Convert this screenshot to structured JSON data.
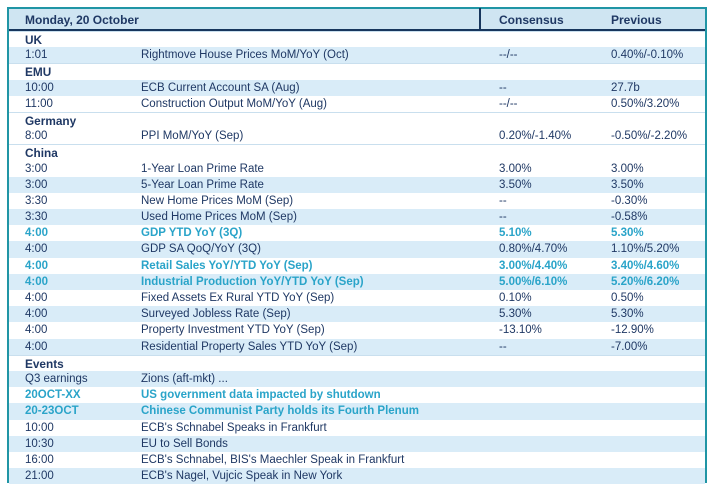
{
  "header": {
    "title": "Monday, 20 October",
    "consensus_label": "Consensus",
    "previous_label": "Previous"
  },
  "colors": {
    "accent_teal_text": "#2aa4c9",
    "navy_text": "#1f3864",
    "stripe_blue": "#d9ecf8",
    "header_blue": "#cfe5f2",
    "outer_border_teal": "#2095a5",
    "header_rule_navy": "#17365d"
  },
  "rows": [
    {
      "type": "section",
      "label": "UK"
    },
    {
      "type": "data",
      "time": "1:01",
      "event": "Rightmove House Prices MoM/YoY (Oct)",
      "consensus": "--/--",
      "previous": "0.40%/-0.10%",
      "highlight": false
    },
    {
      "type": "section",
      "label": "EMU"
    },
    {
      "type": "data",
      "time": "10:00",
      "event": "ECB Current Account SA (Aug)",
      "consensus": "--",
      "previous": "27.7b",
      "highlight": false
    },
    {
      "type": "data",
      "time": "11:00",
      "event": "Construction Output MoM/YoY (Aug)",
      "consensus": "--/--",
      "previous": "0.50%/3.20%",
      "highlight": false
    },
    {
      "type": "section",
      "label": "Germany"
    },
    {
      "type": "data",
      "time": "8:00",
      "event": "PPI MoM/YoY (Sep)",
      "consensus": "0.20%/-1.40%",
      "previous": "-0.50%/-2.20%",
      "highlight": false
    },
    {
      "type": "section",
      "label": "China"
    },
    {
      "type": "data",
      "time": "3:00",
      "event": "1-Year Loan Prime Rate",
      "consensus": "3.00%",
      "previous": "3.00%",
      "highlight": false
    },
    {
      "type": "data",
      "time": "3:00",
      "event": "5-Year Loan Prime Rate",
      "consensus": "3.50%",
      "previous": "3.50%",
      "highlight": false
    },
    {
      "type": "data",
      "time": "3:30",
      "event": "New Home Prices MoM (Sep)",
      "consensus": "--",
      "previous": "-0.30%",
      "highlight": false
    },
    {
      "type": "data",
      "time": "3:30",
      "event": "Used Home Prices MoM (Sep)",
      "consensus": "--",
      "previous": "-0.58%",
      "highlight": false
    },
    {
      "type": "data",
      "time": "4:00",
      "event": "GDP YTD YoY (3Q)",
      "consensus": "5.10%",
      "previous": "5.30%",
      "highlight": true
    },
    {
      "type": "data",
      "time": "4:00",
      "event": "GDP SA QoQ/YoY (3Q)",
      "consensus": "0.80%/4.70%",
      "previous": "1.10%/5.20%",
      "highlight": false
    },
    {
      "type": "data",
      "time": "4:00",
      "event": "Retail Sales YoY/YTD YoY (Sep)",
      "consensus": "3.00%/4.40%",
      "previous": "3.40%/4.60%",
      "highlight": true
    },
    {
      "type": "data",
      "time": "4:00",
      "event": "Industrial Production YoY/YTD YoY (Sep)",
      "consensus": "5.00%/6.10%",
      "previous": "5.20%/6.20%",
      "highlight": true
    },
    {
      "type": "data",
      "time": "4:00",
      "event": "Fixed Assets Ex Rural YTD YoY (Sep)",
      "consensus": "0.10%",
      "previous": "0.50%",
      "highlight": false
    },
    {
      "type": "data",
      "time": "4:00",
      "event": "Surveyed Jobless Rate (Sep)",
      "consensus": "5.30%",
      "previous": "5.30%",
      "highlight": false
    },
    {
      "type": "data",
      "time": "4:00",
      "event": "Property Investment YTD YoY (Sep)",
      "consensus": "-13.10%",
      "previous": "-12.90%",
      "highlight": false
    },
    {
      "type": "data",
      "time": "4:00",
      "event": "Residential Property Sales YTD YoY (Sep)",
      "consensus": "--",
      "previous": "-7.00%",
      "highlight": false
    },
    {
      "type": "section",
      "label": "Events"
    },
    {
      "type": "data",
      "time": "Q3 earnings",
      "event": "Zions (aft-mkt) ...",
      "consensus": "",
      "previous": "",
      "highlight": false
    },
    {
      "type": "data",
      "time": "20OCT-XX",
      "event": "US government  data impacted by shutdown",
      "consensus": "",
      "previous": "",
      "highlight": true
    },
    {
      "type": "data",
      "time": "20-23OCT",
      "event": "Chinese Communist Party holds its Fourth Plenum",
      "consensus": "",
      "previous": "",
      "highlight": true
    },
    {
      "type": "data",
      "time": "10:00",
      "event": "ECB's Schnabel Speaks in Frankfurt",
      "consensus": "",
      "previous": "",
      "highlight": false
    },
    {
      "type": "data",
      "time": "10:30",
      "event": "EU to Sell Bonds",
      "consensus": "",
      "previous": "",
      "highlight": false
    },
    {
      "type": "data",
      "time": "16:00",
      "event": "ECB's Schnabel, BIS's Maechler Speak in Frankfurt",
      "consensus": "",
      "previous": "",
      "highlight": false
    },
    {
      "type": "data",
      "time": "21:00",
      "event": "ECB's Nagel, Vujcic Speak in New York",
      "consensus": "",
      "previous": "",
      "highlight": false
    }
  ]
}
